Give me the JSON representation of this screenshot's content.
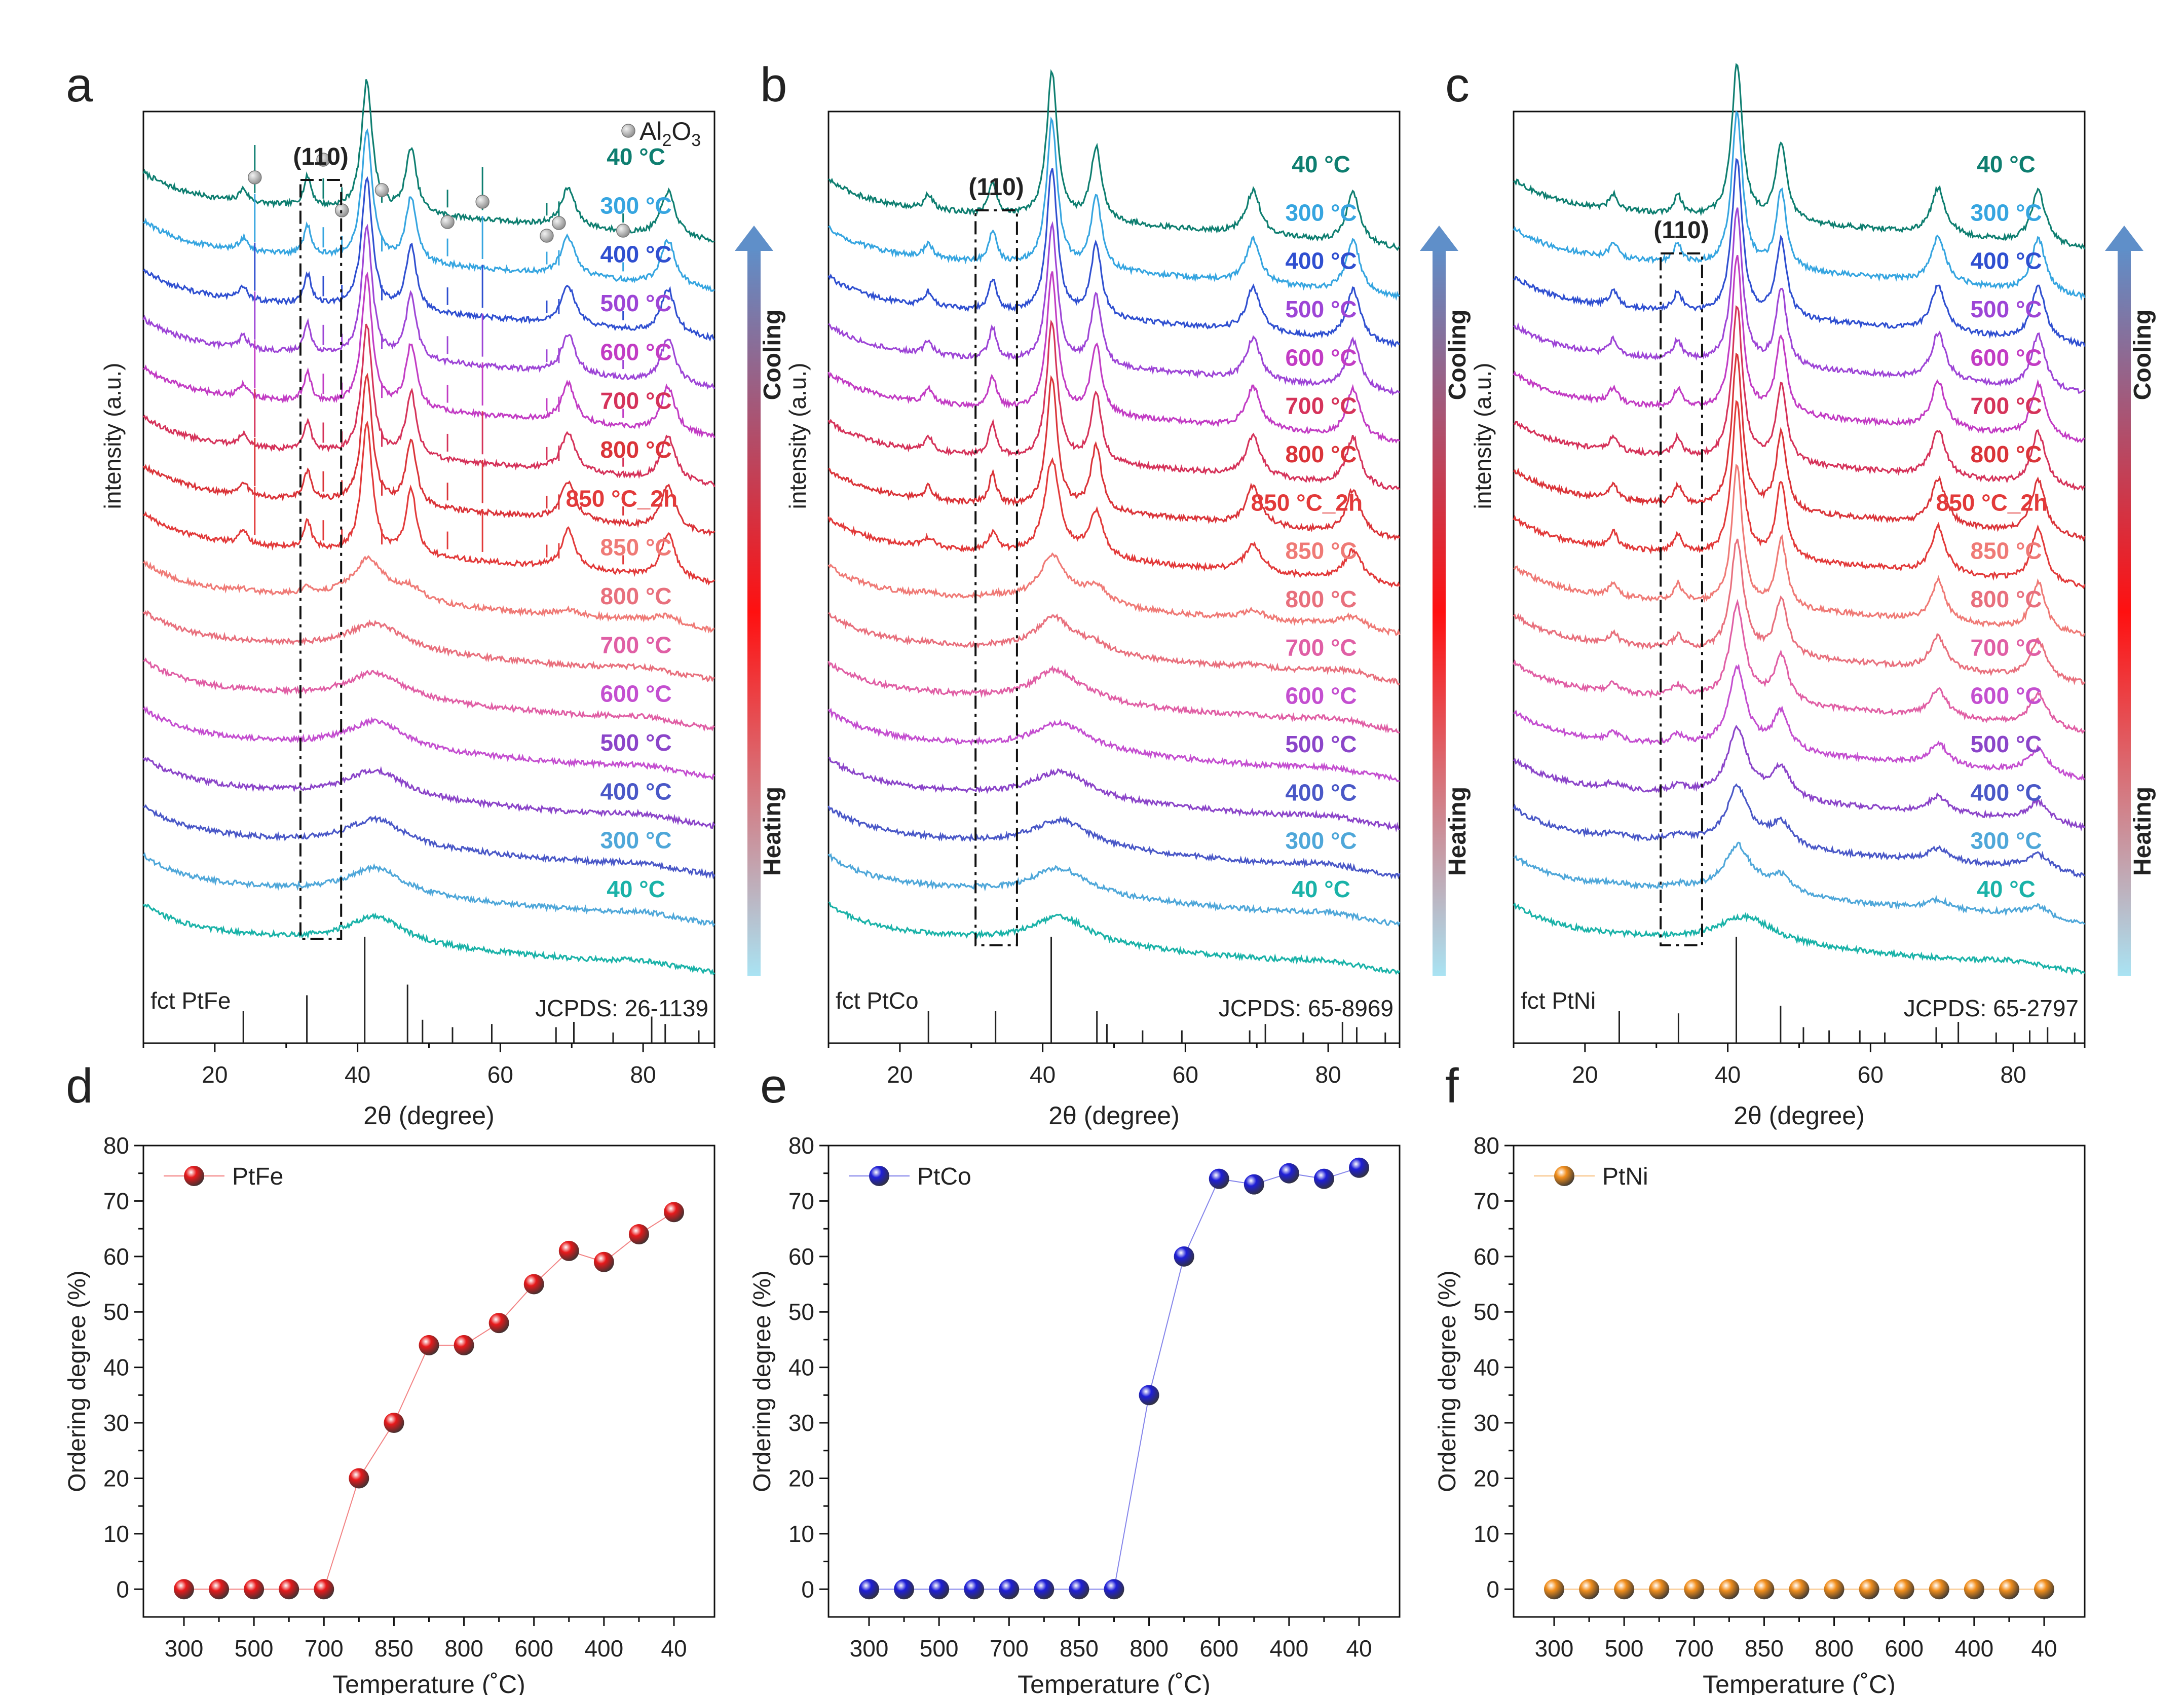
{
  "colors": {
    "T40h": "#1AB2A8",
    "T300h": "#4FA7D9",
    "T400h": "#4A58C7",
    "T500h": "#8B45C9",
    "T600h": "#C44FD0",
    "T700h": "#E05FA5",
    "T800h": "#E8707D",
    "T850h": "#EF7A76",
    "T850_2h": "#E23A3A",
    "T800c": "#DA3439",
    "T700c": "#D5335A",
    "T600c": "#C23CC4",
    "T500c": "#9D45D6",
    "T400c": "#2F4FD0",
    "T300c": "#36A5E0",
    "T40c": "#0E7E70",
    "PtFe": "#E8191B",
    "PtCo": "#1E1ED8",
    "PtNi": "#F28E1B",
    "grad_top": "#5F8FC9",
    "grad_mid": "#FF1010",
    "grad_bot": "#A9E3F3"
  },
  "chart_data": [
    {
      "panel": "a",
      "type": "line",
      "xlabel": "2θ (degree)",
      "ylabel": "intensity (a.u.)",
      "xlim": [
        10,
        90
      ],
      "xticks": [
        20,
        40,
        60,
        80
      ],
      "peak_box_label": "(110)",
      "legend_marker_label": "Al2O3",
      "legend_marker": {
        "main": "Al",
        "sub": "2",
        "tail": "O",
        "sub2": "3"
      },
      "reference_label": "fct PtFe",
      "jcpds": "JCPDS: 26-1139",
      "reference_lines": [
        24.0,
        32.9,
        41.0,
        47.0,
        49.1,
        53.3,
        58.8,
        67.8,
        70.3,
        75.8,
        81.2,
        83.1,
        87.8
      ],
      "reference_heights": [
        0.3,
        0.45,
        1.0,
        0.55,
        0.22,
        0.15,
        0.18,
        0.15,
        0.2,
        0.1,
        0.25,
        0.18,
        0.12
      ],
      "al2o3_markers": [
        25.6,
        35.2,
        37.8,
        43.4,
        52.6,
        57.5,
        66.5,
        68.2,
        77.2
      ],
      "arrow_labels": {
        "top": "Cooling",
        "bottom": "Heating"
      },
      "series": [
        {
          "name": "40 °C",
          "color_key": "T40c",
          "label_x": 79,
          "fct": 1.0,
          "sharp": 1
        },
        {
          "name": "300 °C",
          "color_key": "T300c",
          "label_x": 79,
          "fct": 1.0,
          "sharp": 1
        },
        {
          "name": "400 °C",
          "color_key": "T400c",
          "label_x": 79,
          "fct": 1.0,
          "sharp": 1
        },
        {
          "name": "500 °C",
          "color_key": "T500c",
          "label_x": 79,
          "fct": 0.95,
          "sharp": 1
        },
        {
          "name": "600 °C",
          "color_key": "T600c",
          "label_x": 79,
          "fct": 0.95,
          "sharp": 1
        },
        {
          "name": "700 °C",
          "color_key": "T700c",
          "label_x": 79,
          "fct": 0.9,
          "sharp": 1
        },
        {
          "name": "800 °C",
          "color_key": "T800c",
          "label_x": 79,
          "fct": 0.9,
          "sharp": 1
        },
        {
          "name": "850 °C_2h",
          "color_key": "T850_2h",
          "label_x": 77,
          "fct": 0.8,
          "sharp": 1
        },
        {
          "name": "850 °C",
          "color_key": "T850h",
          "label_x": 79,
          "fct": 0.3,
          "sharp": 0.3
        },
        {
          "name": "800 °C",
          "color_key": "T800h",
          "label_x": 79,
          "fct": 0.1,
          "sharp": 0
        },
        {
          "name": "700 °C",
          "color_key": "T700h",
          "label_x": 79,
          "fct": 0,
          "sharp": 0
        },
        {
          "name": "600 °C",
          "color_key": "T600h",
          "label_x": 79,
          "fct": 0,
          "sharp": 0
        },
        {
          "name": "500 °C",
          "color_key": "T500h",
          "label_x": 79,
          "fct": 0,
          "sharp": 0
        },
        {
          "name": "400 °C",
          "color_key": "T400h",
          "label_x": 79,
          "fct": 0,
          "sharp": 0
        },
        {
          "name": "300 °C",
          "color_key": "T300h",
          "label_x": 79,
          "fct": 0,
          "sharp": 0
        },
        {
          "name": "40 °C",
          "color_key": "T40h",
          "label_x": 79,
          "fct": 0,
          "sharp": 0
        }
      ]
    },
    {
      "panel": "b",
      "type": "line",
      "xlabel": "2θ (degree)",
      "ylabel": "intensity (a.u.)",
      "xlim": [
        10,
        90
      ],
      "xticks": [
        20,
        40,
        60,
        80
      ],
      "peak_box_label": "(110)",
      "reference_label": "fct PtCo",
      "jcpds": "JCPDS: 65-8969",
      "reference_lines": [
        24.0,
        33.4,
        41.2,
        47.6,
        49.0,
        54.0,
        59.5,
        69.0,
        71.2,
        76.5,
        82.0,
        84.0,
        88.0
      ],
      "reference_heights": [
        0.3,
        0.3,
        1.0,
        0.3,
        0.18,
        0.12,
        0.12,
        0.12,
        0.18,
        0.1,
        0.2,
        0.15,
        0.1
      ],
      "arrow_labels": {
        "top": "Cooling",
        "bottom": "Heating"
      },
      "series": [
        {
          "name": "40 °C",
          "color_key": "T40c",
          "label_x": 79,
          "fct": 1.0,
          "sharp": 1.2
        },
        {
          "name": "300 °C",
          "color_key": "T300c",
          "label_x": 79,
          "fct": 1.0,
          "sharp": 1.2
        },
        {
          "name": "400 °C",
          "color_key": "T400c",
          "label_x": 79,
          "fct": 1.0,
          "sharp": 1.2
        },
        {
          "name": "500 °C",
          "color_key": "T500c",
          "label_x": 79,
          "fct": 1.0,
          "sharp": 1.1
        },
        {
          "name": "600 °C",
          "color_key": "T600c",
          "label_x": 79,
          "fct": 1.0,
          "sharp": 1.1
        },
        {
          "name": "700 °C",
          "color_key": "T700c",
          "label_x": 79,
          "fct": 1.0,
          "sharp": 1.1
        },
        {
          "name": "800 °C",
          "color_key": "T800c",
          "label_x": 79,
          "fct": 1.0,
          "sharp": 1.0
        },
        {
          "name": "850 °C_2h",
          "color_key": "T850_2h",
          "label_x": 77,
          "fct": 0.5,
          "sharp": 0.8
        },
        {
          "name": "850 °C",
          "color_key": "T850h",
          "label_x": 79,
          "fct": 0,
          "sharp": 0.4
        },
        {
          "name": "800 °C",
          "color_key": "T800h",
          "label_x": 79,
          "fct": 0,
          "sharp": 0.2
        },
        {
          "name": "700 °C",
          "color_key": "T700h",
          "label_x": 79,
          "fct": 0,
          "sharp": 0.1
        },
        {
          "name": "600 °C",
          "color_key": "T600h",
          "label_x": 79,
          "fct": 0,
          "sharp": 0
        },
        {
          "name": "500 °C",
          "color_key": "T500h",
          "label_x": 79,
          "fct": 0,
          "sharp": 0
        },
        {
          "name": "400 °C",
          "color_key": "T400h",
          "label_x": 79,
          "fct": 0,
          "sharp": 0
        },
        {
          "name": "300 °C",
          "color_key": "T300h",
          "label_x": 79,
          "fct": 0,
          "sharp": 0
        },
        {
          "name": "40 °C",
          "color_key": "T40h",
          "label_x": 79,
          "fct": 0,
          "sharp": 0
        }
      ]
    },
    {
      "panel": "c",
      "type": "line",
      "xlabel": "2θ (degree)",
      "ylabel": "intensity (a.u.)",
      "xlim": [
        10,
        90
      ],
      "xticks": [
        20,
        40,
        60,
        80
      ],
      "peak_box_label": "(110)",
      "reference_label": "fct PtNi",
      "jcpds": "JCPDS: 65-2797",
      "reference_lines": [
        24.8,
        33.1,
        41.2,
        47.4,
        50.6,
        54.2,
        58.5,
        62.0,
        69.2,
        72.3,
        77.6,
        82.3,
        84.8,
        88.6
      ],
      "reference_heights": [
        0.3,
        0.28,
        1.0,
        0.35,
        0.15,
        0.12,
        0.12,
        0.1,
        0.15,
        0.2,
        0.1,
        0.12,
        0.15,
        0.1
      ],
      "arrow_labels": {
        "top": "Cooling",
        "bottom": "Heating"
      },
      "series": [
        {
          "name": "40 °C",
          "color_key": "T40c",
          "label_x": 79,
          "fct": 0,
          "sharp": 1.3
        },
        {
          "name": "300 °C",
          "color_key": "T300c",
          "label_x": 79,
          "fct": 0,
          "sharp": 1.3
        },
        {
          "name": "400 °C",
          "color_key": "T400c",
          "label_x": 79,
          "fct": 0,
          "sharp": 1.3
        },
        {
          "name": "500 °C",
          "color_key": "T500c",
          "label_x": 79,
          "fct": 0,
          "sharp": 1.3
        },
        {
          "name": "600 °C",
          "color_key": "T600c",
          "label_x": 79,
          "fct": 0,
          "sharp": 1.3
        },
        {
          "name": "700 °C",
          "color_key": "T700c",
          "label_x": 79,
          "fct": 0,
          "sharp": 1.3
        },
        {
          "name": "800 °C",
          "color_key": "T800c",
          "label_x": 79,
          "fct": 0,
          "sharp": 1.3
        },
        {
          "name": "850 °C_2h",
          "color_key": "T850_2h",
          "label_x": 77,
          "fct": 0,
          "sharp": 1.3
        },
        {
          "name": "850 °C",
          "color_key": "T850h",
          "label_x": 79,
          "fct": 0,
          "sharp": 1.1
        },
        {
          "name": "800 °C",
          "color_key": "T800h",
          "label_x": 79,
          "fct": 0,
          "sharp": 0.9
        },
        {
          "name": "700 °C",
          "color_key": "T700h",
          "label_x": 79,
          "fct": 0,
          "sharp": 0.8
        },
        {
          "name": "600 °C",
          "color_key": "T600h",
          "label_x": 79,
          "fct": 0,
          "sharp": 0.7
        },
        {
          "name": "500 °C",
          "color_key": "T500h",
          "label_x": 79,
          "fct": 0,
          "sharp": 0.6
        },
        {
          "name": "400 °C",
          "color_key": "T400h",
          "label_x": 79,
          "fct": 0,
          "sharp": 0.5
        },
        {
          "name": "300 °C",
          "color_key": "T300h",
          "label_x": 79,
          "fct": 0,
          "sharp": 0.4
        },
        {
          "name": "40 °C",
          "color_key": "T40h",
          "label_x": 79,
          "fct": 0,
          "sharp": 0
        }
      ]
    },
    {
      "panel": "d",
      "type": "line",
      "xlabel": "Temperature (˚C)",
      "ylabel": "Ordering degree (%)",
      "ylim": [
        -5,
        80
      ],
      "yticks": [
        0,
        10,
        20,
        30,
        40,
        50,
        60,
        70,
        80
      ],
      "categories": [
        "300",
        "400",
        "500",
        "600",
        "700",
        "800",
        "850",
        "850_2h",
        "800",
        "700",
        "600",
        "500",
        "400",
        "300",
        "40"
      ],
      "category_labels": [
        "300",
        "",
        "500",
        "",
        "700",
        "",
        "850",
        "",
        "800",
        "",
        "600",
        "",
        "400",
        "",
        "40"
      ],
      "series": [
        {
          "name": "PtFe",
          "color_key": "PtFe",
          "values": [
            0,
            0,
            0,
            0,
            0,
            20,
            30,
            44,
            44,
            48,
            55,
            61,
            59,
            64,
            68
          ]
        }
      ]
    },
    {
      "panel": "e",
      "type": "line",
      "xlabel": "Temperature (˚C)",
      "ylabel": "Ordering degree (%)",
      "ylim": [
        -5,
        80
      ],
      "yticks": [
        0,
        10,
        20,
        30,
        40,
        50,
        60,
        70,
        80
      ],
      "categories": [
        "300",
        "400",
        "500",
        "600",
        "700",
        "800",
        "850",
        "850_2h",
        "800",
        "700",
        "600",
        "500",
        "400",
        "300",
        "40"
      ],
      "category_labels": [
        "300",
        "",
        "500",
        "",
        "700",
        "",
        "850",
        "",
        "800",
        "",
        "600",
        "",
        "400",
        "",
        "40"
      ],
      "series": [
        {
          "name": "PtCo",
          "color_key": "PtCo",
          "values": [
            0,
            0,
            0,
            0,
            0,
            0,
            0,
            0,
            35,
            60,
            74,
            73,
            75,
            74,
            76
          ]
        }
      ]
    },
    {
      "panel": "f",
      "type": "line",
      "xlabel": "Temperature (˚C)",
      "ylabel": "Ordering degree (%)",
      "ylim": [
        -5,
        80
      ],
      "yticks": [
        0,
        10,
        20,
        30,
        40,
        50,
        60,
        70,
        80
      ],
      "categories": [
        "300",
        "400",
        "500",
        "600",
        "700",
        "800",
        "850",
        "850_2h",
        "800",
        "700",
        "600",
        "500",
        "400",
        "300",
        "40"
      ],
      "category_labels": [
        "300",
        "",
        "500",
        "",
        "700",
        "",
        "850",
        "",
        "800",
        "",
        "600",
        "",
        "400",
        "",
        "40"
      ],
      "series": [
        {
          "name": "PtNi",
          "color_key": "PtNi",
          "values": [
            0,
            0,
            0,
            0,
            0,
            0,
            0,
            0,
            0,
            0,
            0,
            0,
            0,
            0,
            0
          ]
        }
      ]
    }
  ]
}
